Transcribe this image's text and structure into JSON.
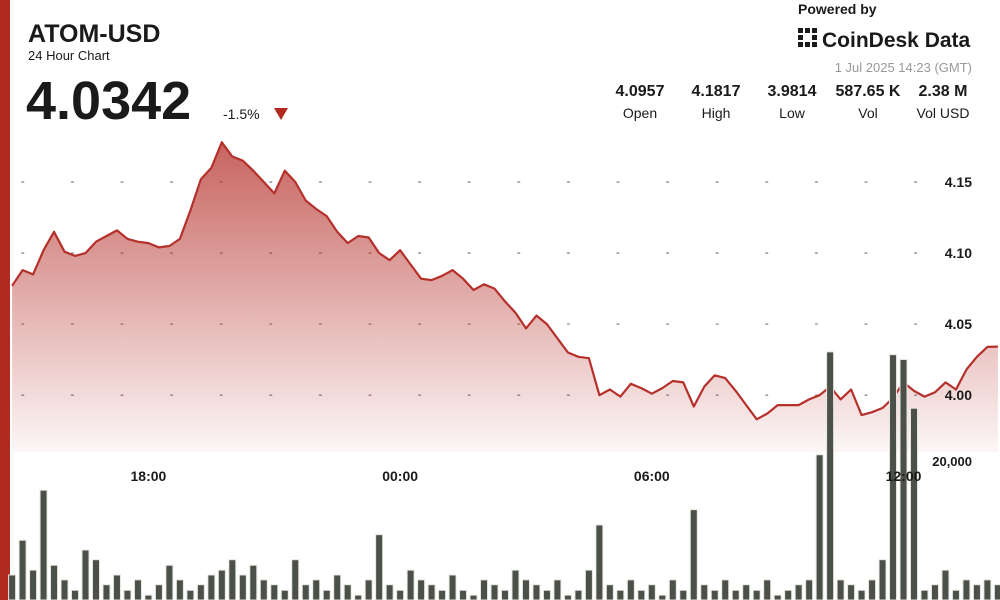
{
  "header": {
    "title": "ATOM-USD",
    "subtitle": "24 Hour Chart",
    "price": "4.0342",
    "change": "-1.5%",
    "powered_by": "Powered by",
    "brand": "CoinDesk Data",
    "timestamp": "1 Jul 2025 14:23 (GMT)"
  },
  "stats": [
    {
      "value": "4.0957",
      "label": "Open"
    },
    {
      "value": "4.1817",
      "label": "High"
    },
    {
      "value": "3.9814",
      "label": "Low"
    },
    {
      "value": "587.65 K",
      "label": "Vol"
    },
    {
      "value": "2.38 M",
      "label": "Vol USD"
    }
  ],
  "chart_data": {
    "type": "line",
    "color": "#b5302a",
    "x": [
      14.75,
      15,
      15.25,
      15.5,
      15.75,
      16,
      16.25,
      16.5,
      16.75,
      17,
      17.25,
      17.5,
      17.75,
      18,
      18.25,
      18.5,
      18.75,
      19,
      19.25,
      19.5,
      19.75,
      20,
      20.25,
      20.5,
      20.75,
      21,
      21.25,
      21.5,
      21.75,
      22,
      22.25,
      22.5,
      22.75,
      23,
      23.25,
      23.5,
      23.75,
      24,
      24.25,
      24.5,
      24.75,
      25,
      25.25,
      25.5,
      25.75,
      26,
      26.25,
      26.5,
      26.75,
      27,
      27.25,
      27.5,
      27.75,
      28,
      28.25,
      28.5,
      28.75,
      29,
      29.25,
      29.5,
      29.75,
      30,
      30.25,
      30.5,
      30.75,
      31,
      31.25,
      31.5,
      31.75,
      32,
      32.25,
      32.5,
      32.75,
      33,
      33.25,
      33.5,
      33.75,
      34,
      34.25,
      34.5,
      34.75,
      35,
      35.25,
      35.5,
      35.75,
      36,
      36.25,
      36.5,
      36.75,
      37,
      37.25,
      37.5,
      37.75,
      38,
      38.25
    ],
    "values": [
      4.077,
      4.088,
      4.085,
      4.102,
      4.115,
      4.101,
      4.098,
      4.1,
      4.108,
      4.112,
      4.116,
      4.11,
      4.108,
      4.107,
      4.104,
      4.105,
      4.11,
      4.13,
      4.152,
      4.16,
      4.178,
      4.168,
      4.165,
      4.158,
      4.15,
      4.142,
      4.158,
      4.15,
      4.137,
      4.131,
      4.126,
      4.115,
      4.107,
      4.112,
      4.111,
      4.1,
      4.095,
      4.102,
      4.092,
      4.082,
      4.081,
      4.084,
      4.088,
      4.082,
      4.074,
      4.078,
      4.075,
      4.066,
      4.058,
      4.047,
      4.056,
      4.05,
      4.04,
      4.03,
      4.027,
      4.026,
      4.0,
      4.004,
      3.999,
      4.008,
      4.005,
      4.001,
      4.005,
      4.01,
      4.009,
      3.992,
      4.006,
      4.014,
      4.012,
      4.003,
      3.993,
      3.983,
      3.987,
      3.993,
      3.993,
      3.993,
      3.997,
      4.0,
      4.006,
      3.997,
      4.004,
      3.986,
      3.988,
      3.991,
      3.998,
      4.009,
      4.003,
      3.999,
      4.002,
      4.009,
      4.004,
      4.018,
      4.027,
      4.034,
      4.0342
    ],
    "volume": {
      "type": "bar",
      "axis": "y2",
      "color": "#4b5048",
      "values": [
        3600,
        8600,
        4300,
        15800,
        5000,
        2900,
        1400,
        7200,
        5800,
        2200,
        3600,
        1400,
        2900,
        700,
        2200,
        5000,
        2900,
        1400,
        2200,
        3600,
        4300,
        5800,
        3600,
        5000,
        2900,
        2200,
        1400,
        5800,
        2200,
        2900,
        1400,
        3600,
        2200,
        700,
        2900,
        9400,
        2200,
        1400,
        4300,
        2900,
        2200,
        1400,
        3600,
        1400,
        700,
        2900,
        2200,
        1400,
        4300,
        2900,
        2200,
        1400,
        2900,
        700,
        1400,
        4300,
        10800,
        2200,
        1400,
        2900,
        1400,
        2200,
        700,
        2900,
        1400,
        13000,
        2200,
        1400,
        2900,
        1400,
        2200,
        1400,
        2900,
        700,
        1400,
        2200,
        2900,
        20900,
        35700,
        2900,
        2200,
        1400,
        2900,
        5800,
        35300,
        34600,
        27600,
        1400,
        2200,
        4300,
        1400,
        2900,
        2200,
        2900,
        2200
      ]
    },
    "xlim": [
      14.7,
      38.3
    ],
    "xticks": [
      {
        "value": 18,
        "label": "18:00"
      },
      {
        "value": 24,
        "label": "00:00"
      },
      {
        "value": 30,
        "label": "06:00"
      },
      {
        "value": 36,
        "label": "12:00"
      }
    ],
    "ylim": [
      3.96,
      4.2
    ],
    "yticks": [
      {
        "value": 4,
        "label": "4.00"
      },
      4.05,
      {
        "value": 4.1,
        "label": "4.10"
      },
      4.15
    ],
    "y2lim": [
      0,
      40000
    ],
    "y2ticks": [
      {
        "value": 20000,
        "label": "20,000"
      }
    ],
    "grid": true
  }
}
